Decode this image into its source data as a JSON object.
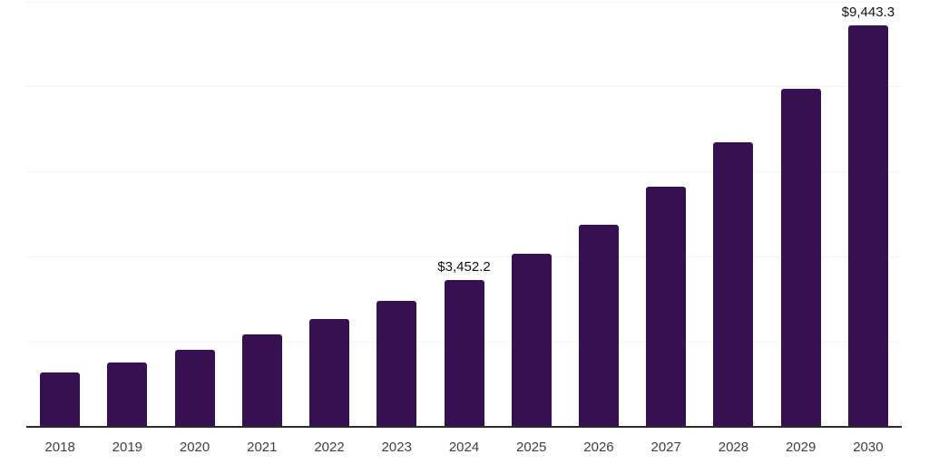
{
  "chart_data": {
    "type": "bar",
    "categories": [
      "2018",
      "2019",
      "2020",
      "2021",
      "2022",
      "2023",
      "2024",
      "2025",
      "2026",
      "2027",
      "2028",
      "2029",
      "2030"
    ],
    "values": [
      1280,
      1505,
      1810,
      2170,
      2530,
      2965,
      3452.2,
      4070,
      4760,
      5645,
      6680,
      7940,
      9443.3
    ],
    "labeled_points": [
      {
        "index": 6,
        "label": "$3,452.2"
      },
      {
        "index": 12,
        "label": "$9,443.3"
      }
    ],
    "title": "",
    "xlabel": "",
    "ylabel": "",
    "ylim": [
      0,
      10000
    ],
    "gridline_values": [
      2000,
      4000,
      6000,
      8000,
      10000
    ],
    "grid": "horizontal-only",
    "legend": "none",
    "y_axis_tick_labels_visible": false,
    "colors": {
      "bar": "#371052",
      "axis_line": "#2b2b2b",
      "gridline": "#f3f3f3",
      "tick_label": "#404040",
      "value_label": "#111111"
    }
  }
}
